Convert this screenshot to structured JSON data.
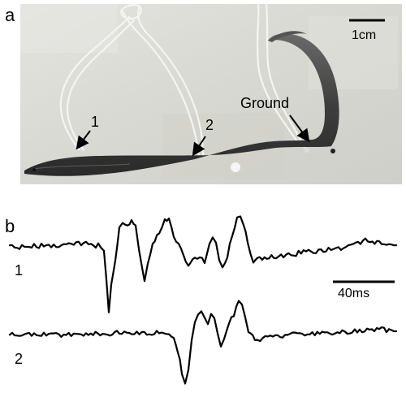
{
  "panel_a": {
    "label": "a",
    "electrode_labels": [
      "1",
      "2"
    ],
    "ground_label": "Ground",
    "scale_label": "1cm"
  },
  "panel_b": {
    "label": "b",
    "scale_label": "40ms",
    "traces": [
      {
        "label": "1"
      },
      {
        "label": "2"
      }
    ]
  },
  "colors": {
    "photo_background": "#dcdcd6",
    "eel_body": "#4a4a4a",
    "trace": "#000000"
  }
}
